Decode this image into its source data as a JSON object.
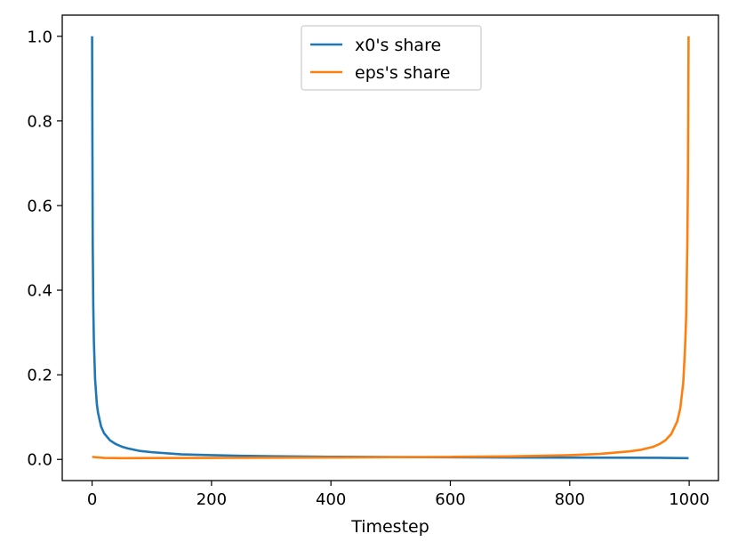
{
  "colors": {
    "x0_line": "#1f77b4",
    "eps_line": "#ff7f0e",
    "axes": "#000000",
    "legend_border": "#cccccc",
    "background": "#ffffff"
  },
  "chart_data": {
    "type": "line",
    "title": "",
    "xlabel": "Timestep",
    "ylabel": "",
    "xlim": [
      -50,
      1049
    ],
    "ylim": [
      -0.05,
      1.05
    ],
    "xticks": [
      0,
      200,
      400,
      600,
      800,
      1000
    ],
    "yticks": [
      0.0,
      0.2,
      0.4,
      0.6,
      0.8,
      1.0
    ],
    "xtick_labels": [
      "0",
      "200",
      "400",
      "600",
      "800",
      "1000"
    ],
    "ytick_labels": [
      "0.0",
      "0.2",
      "0.4",
      "0.6",
      "0.8",
      "1.0"
    ],
    "grid": false,
    "legend_position": "upper center",
    "series": [
      {
        "name": "x0's share",
        "color": "#1f77b4",
        "x": [
          0,
          1,
          2,
          3,
          5,
          8,
          10,
          15,
          20,
          30,
          40,
          50,
          60,
          80,
          100,
          150,
          200,
          250,
          300,
          400,
          500,
          600,
          700,
          800,
          900,
          950,
          980,
          999
        ],
        "y": [
          1.0,
          0.52,
          0.36,
          0.28,
          0.19,
          0.13,
          0.11,
          0.078,
          0.062,
          0.045,
          0.036,
          0.03,
          0.026,
          0.02,
          0.017,
          0.012,
          0.01,
          0.0085,
          0.0075,
          0.0062,
          0.0055,
          0.005,
          0.0046,
          0.0043,
          0.004,
          0.0037,
          0.0033,
          0.003
        ]
      },
      {
        "name": "eps's share",
        "color": "#ff7f0e",
        "x": [
          0,
          20,
          50,
          100,
          200,
          300,
          400,
          500,
          600,
          700,
          750,
          800,
          850,
          900,
          920,
          940,
          950,
          960,
          970,
          980,
          985,
          990,
          993,
          995,
          997,
          998,
          999
        ],
        "y": [
          0.006,
          0.0035,
          0.003,
          0.0032,
          0.0035,
          0.004,
          0.0045,
          0.0052,
          0.006,
          0.0072,
          0.0085,
          0.01,
          0.013,
          0.019,
          0.023,
          0.03,
          0.036,
          0.045,
          0.06,
          0.09,
          0.12,
          0.18,
          0.26,
          0.34,
          0.52,
          0.68,
          1.0
        ]
      }
    ]
  }
}
